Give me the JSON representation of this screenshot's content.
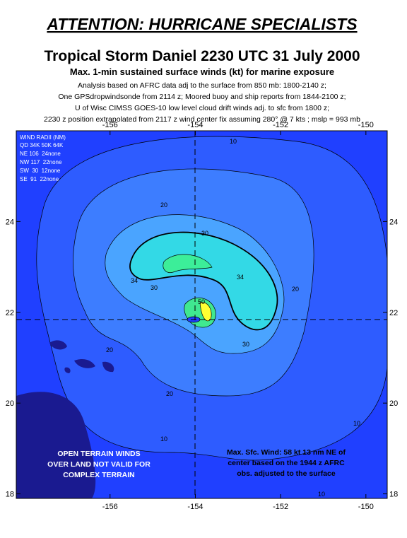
{
  "header": {
    "banner": "ATTENTION: HURRICANE SPECIALISTS",
    "title": "Tropical Storm Daniel  2230 UTC 31 July 2000",
    "subtitle": "Max. 1-min sustained surface winds (kt) for marine exposure",
    "notes": [
      "Analysis based on AFRC data adj to the surface from 850 mb: 1800-2140 z;",
      "One GPSdropwindsonde from 2114 z; Moored buoy and ship reports from 1844-2100 z;",
      "U of Wisc CIMSS GOES-10 low level cloud drift winds adj. to sfc from 1800 z;",
      "2230 z position extrapolated from 2117 z wind center fix assuming 280° @ 7 kts ; mslp = 993 mb"
    ]
  },
  "map": {
    "xlim": [
      -158.2,
      -149.5
    ],
    "ylim": [
      17.9,
      26.0
    ],
    "xticks": [
      -156,
      -154,
      -152,
      -150
    ],
    "yticks": [
      18,
      20,
      22,
      24
    ],
    "contour_labels": [
      10,
      20,
      30,
      34,
      30,
      34,
      20,
      20,
      30,
      20,
      10,
      10,
      10,
      50
    ],
    "wind_radii": {
      "title": "WIND RADII (NM)",
      "rows": [
        "QD 34K 50K 64K",
        "NE 106  24none",
        "NW 117  22none",
        "SW  30  12none",
        "SE  91  22none"
      ]
    },
    "land_note": [
      "OPEN TERRAIN WINDS",
      "OVER LAND NOT VALID FOR",
      "COMPLEX TERRAIN"
    ],
    "max_wind_note": [
      "Max. Sfc. Wind: 58 kt 13 nm NE of",
      "center based on the 1944 z AFRC",
      "obs. adjusted to the surface"
    ]
  }
}
